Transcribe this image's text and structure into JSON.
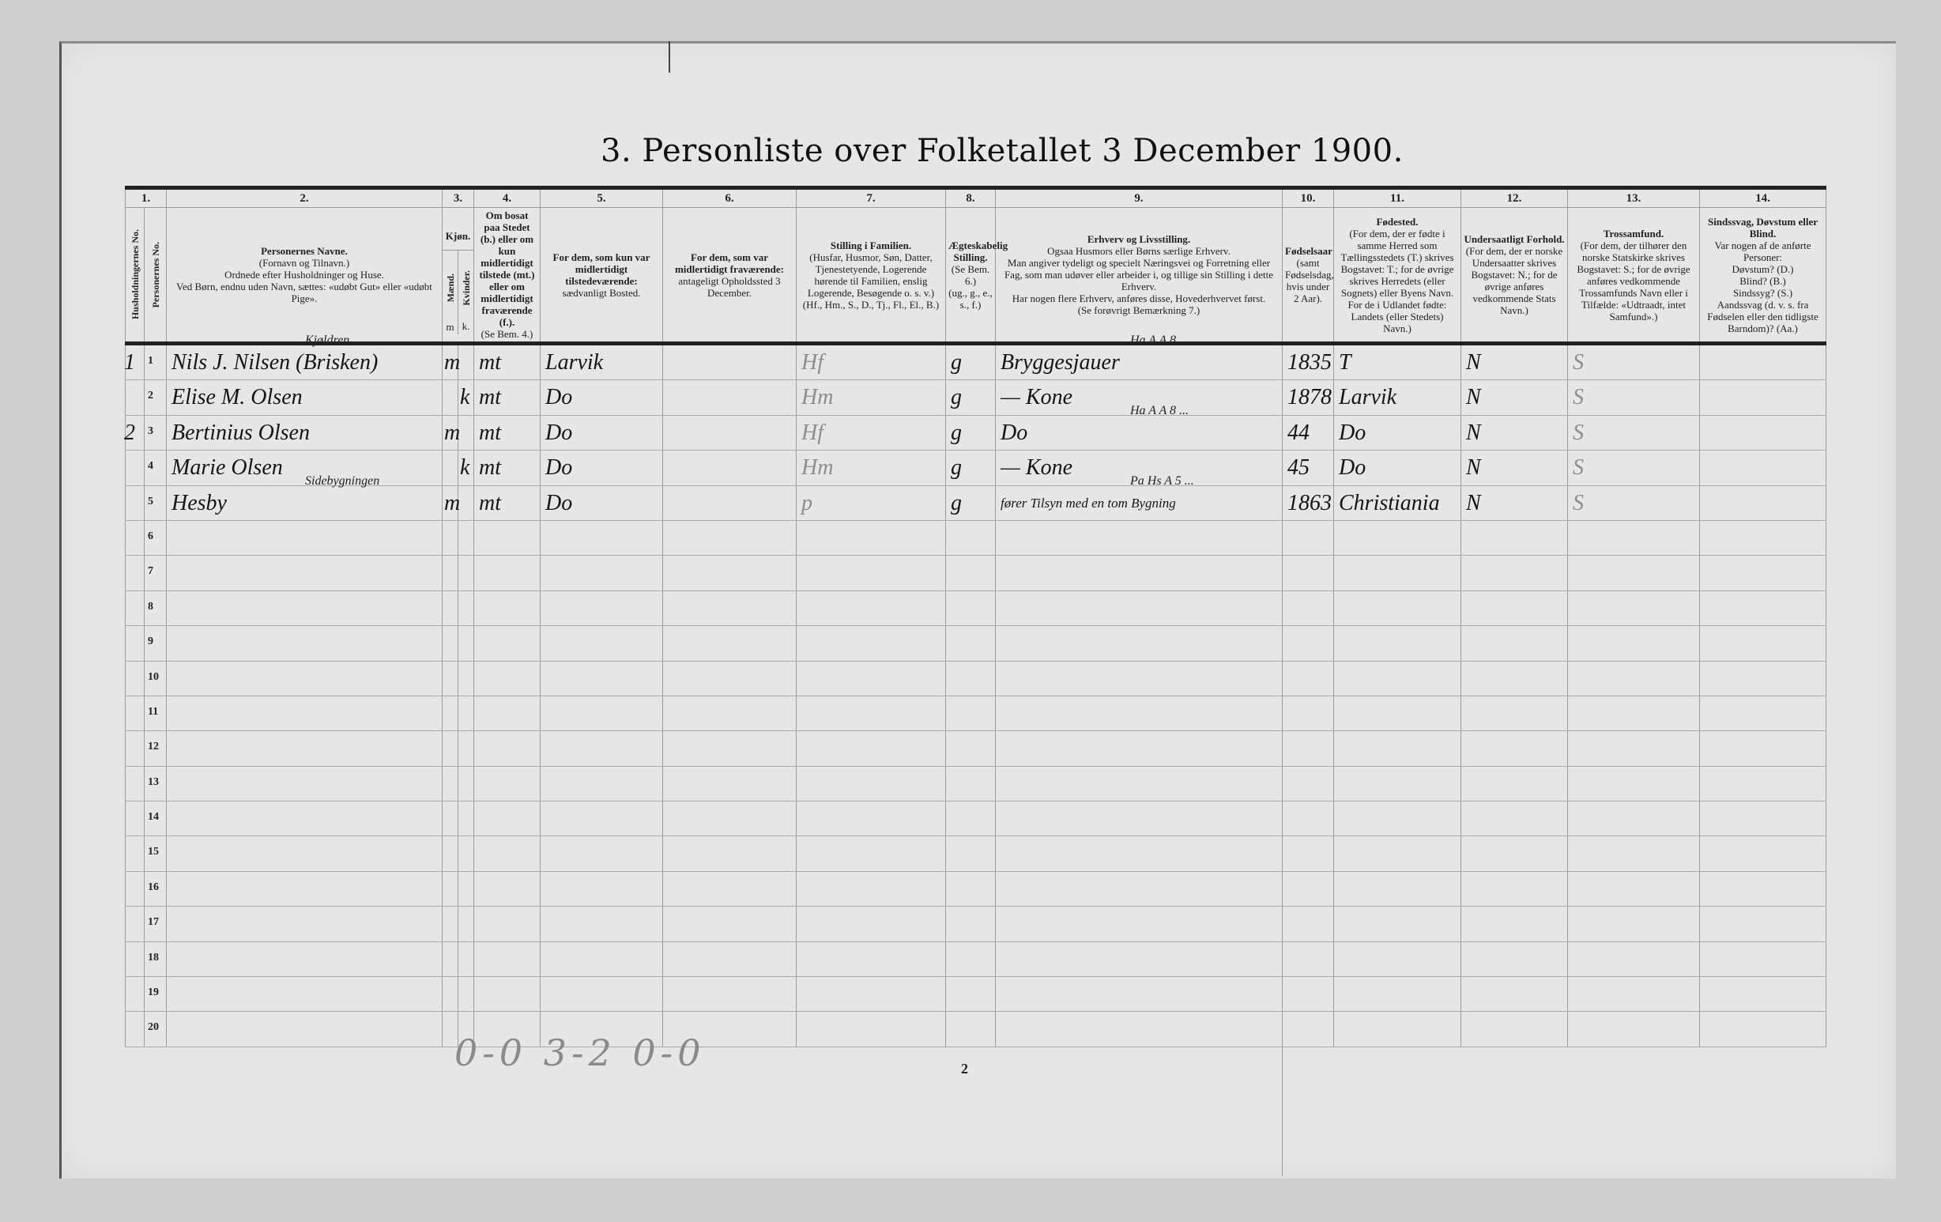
{
  "title": "3.  Personliste over Folketallet 3 December 1900.",
  "column_numbers": [
    "1.",
    "2.",
    "3.",
    "4.",
    "5.",
    "6.",
    "7.",
    "8.",
    "9.",
    "10.",
    "11.",
    "12.",
    "13.",
    "14."
  ],
  "headers": {
    "household_no": "Husholdningernes No.",
    "person_no": "Personernes No.",
    "col2": [
      "Personernes Navne.",
      "(Fornavn og Tilnavn.)",
      "Ordnede efter Husholdninger og Huse.",
      "Ved Børn, endnu uden Navn, sættes: «udøbt Gut» eller «udøbt Pige»."
    ],
    "col3": {
      "title": "Kjøn.",
      "male": "Mænd.",
      "female": "Kvinder.",
      "male_abbr": "m",
      "female_abbr": "k."
    },
    "col4": [
      "Om bosat paa Stedet (b.) eller om kun midlertidigt tilstede (mt.) eller om midlertidigt fraværende (f.).",
      "(Se Bem. 4.)"
    ],
    "col5": [
      "For dem, som kun var midlertidigt tilstedeværende:",
      "sædvanligt Bosted."
    ],
    "col6": [
      "For dem, som var midlertidigt fraværende:",
      "antageligt Opholdssted 3 December."
    ],
    "col7": [
      "Stilling i Familien.",
      "(Husfar, Husmor, Søn, Datter, Tjenestetyende, Logerende hørende til Familien, enslig Logerende, Besøgende o. s. v.)",
      "(Hf., Hm., S., D., Tj., Fl., El., B.)"
    ],
    "col8": [
      "Ægteskabelig Stilling.",
      "(Se Bem. 6.)",
      "(ug., g., e., s., f.)"
    ],
    "col9": [
      "Erhverv og Livsstilling.",
      "Ogsaa Husmors eller Børns særlige Erhverv.",
      "Man angiver tydeligt og specielt Næringsvei og Forretning eller Fag, som man udøver eller arbeider i, og tillige sin Stilling i dette Erhverv.",
      "Har nogen flere Erhverv, anføres disse, Hovederhvervet først.",
      "(Se forøvrigt Bemærkning 7.)"
    ],
    "col10": [
      "Fødselsaar",
      "(samt Fødselsdag, hvis under 2 Aar)."
    ],
    "col11": [
      "Fødested.",
      "(For dem, der er fødte i samme Herred som Tællingsstedets (T.) skrives Bogstavet: T.; for de øvrige skrives Herredets (eller Sognets) eller Byens Navn.",
      "For de i Udlandet fødte: Landets (eller Stedets) Navn.)"
    ],
    "col12": [
      "Undersaatligt Forhold.",
      "(For dem, der er norske Undersaatter skrives Bogstavet: N.; for de øvrige anføres vedkommende Stats Navn.)"
    ],
    "col13": [
      "Trossamfund.",
      "(For dem, der tilhører den norske Statskirke skrives Bogstavet: S.; for de øvrige anføres vedkommende Trossamfunds Navn eller i Tilfælde: «Udtraadt, intet Samfund».)"
    ],
    "col14": [
      "Sindssvag, Døvstum eller Blind.",
      "Var nogen af de anførte Personer:",
      "Døvstum? (D.)",
      "Blind? (B.)",
      "Sindssyg? (S.)",
      "Aandssvag (d. v. s. fra Fødselen eller den tidligste Barndom)? (Aa.)"
    ]
  },
  "rows": [
    {
      "household": "1",
      "person": "1",
      "name_note": "Kjøldren",
      "name": "Nils J. Nilsen (Brisken)",
      "male": "m",
      "female": "",
      "residence": "mt",
      "usual_residence": "Larvik",
      "temp_absent": "",
      "family_position": "Hf",
      "marital": "g",
      "occupation_note": "Ha A A 8 ...",
      "occupation": "Bryggesjauer",
      "birth_year": "1835",
      "birthplace": "T",
      "citizenship": "N",
      "religion": "S",
      "disability": ""
    },
    {
      "household": "",
      "person": "2",
      "name_note": "",
      "name": "Elise M. Olsen",
      "male": "",
      "female": "k",
      "residence": "mt",
      "usual_residence": "Do",
      "temp_absent": "",
      "family_position": "Hm",
      "marital": "g",
      "occupation_note": "",
      "occupation": "— Kone",
      "birth_year": "1878",
      "birthplace": "Larvik",
      "citizenship": "N",
      "religion": "S",
      "disability": ""
    },
    {
      "household": "2",
      "person": "3",
      "name_note": "",
      "name": "Bertinius Olsen",
      "male": "m",
      "female": "",
      "residence": "mt",
      "usual_residence": "Do",
      "temp_absent": "",
      "family_position": "Hf",
      "marital": "g",
      "occupation_note": "Ha A A 8 ...",
      "occupation": "Do",
      "birth_year": "44",
      "birthplace": "Do",
      "citizenship": "N",
      "religion": "S",
      "disability": ""
    },
    {
      "household": "",
      "person": "4",
      "name_note": "",
      "name": "Marie Olsen",
      "male": "",
      "female": "k",
      "residence": "mt",
      "usual_residence": "Do",
      "temp_absent": "",
      "family_position": "Hm",
      "marital": "g",
      "occupation_note": "",
      "occupation": "— Kone",
      "birth_year": "45",
      "birthplace": "Do",
      "citizenship": "N",
      "religion": "S",
      "disability": ""
    },
    {
      "household": "",
      "person": "5",
      "name_note": "Sidebygningen",
      "name": "Hesby",
      "male": "m",
      "female": "",
      "residence": "mt",
      "usual_residence": "Do",
      "temp_absent": "",
      "family_position": "p",
      "marital": "g",
      "occupation_note": "Pa Hs A 5 ...",
      "occupation": "fører Tilsyn med en tom Bygning",
      "birth_year": "1863",
      "birthplace": "Christiania",
      "citizenship": "N",
      "religion": "S",
      "disability": ""
    },
    {
      "person": "6"
    },
    {
      "person": "7"
    },
    {
      "person": "8"
    },
    {
      "person": "9"
    },
    {
      "person": "10"
    },
    {
      "person": "11"
    },
    {
      "person": "12"
    },
    {
      "person": "13"
    },
    {
      "person": "14"
    },
    {
      "person": "15"
    },
    {
      "person": "16"
    },
    {
      "person": "17"
    },
    {
      "person": "18"
    },
    {
      "person": "19"
    },
    {
      "person": "20"
    }
  ],
  "footer_tally": "0-0  3-2  0-0",
  "page_number": "2"
}
